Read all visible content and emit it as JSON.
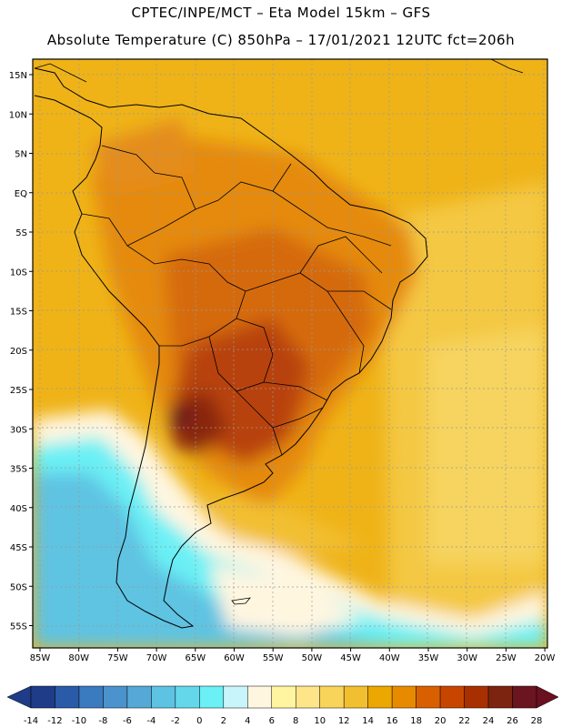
{
  "title": {
    "line1": "CPTEC/INPE/MCT –  Eta Model 15km – GFS",
    "line2": "Absolute Temperature (C) 850hPa – 17/01/2021 12UTC fct=206h"
  },
  "map": {
    "lat_ticks": [
      "15N",
      "10N",
      "5N",
      "EQ",
      "5S",
      "10S",
      "15S",
      "20S",
      "25S",
      "30S",
      "35S",
      "40S",
      "45S",
      "50S",
      "55S"
    ],
    "lon_ticks": [
      "85W",
      "80W",
      "75W",
      "70W",
      "65W",
      "60W",
      "55W",
      "50W",
      "45W",
      "40W",
      "35W",
      "30W",
      "25W",
      "20W"
    ]
  },
  "colorbar": {
    "labels": [
      "-14",
      "-12",
      "-10",
      "-8",
      "-6",
      "-4",
      "-2",
      "0",
      "2",
      "4",
      "6",
      "8",
      "10",
      "12",
      "14",
      "16",
      "18",
      "20",
      "22",
      "24",
      "26",
      "28"
    ],
    "colors": [
      "#1f3c88",
      "#2a5ba8",
      "#3a7bbf",
      "#4a93cc",
      "#56a9d6",
      "#5ec3e2",
      "#64d8ea",
      "#6af0f5",
      "#c8f4fb",
      "#fff6e0",
      "#fff5a0",
      "#ffe58a",
      "#f9d45a",
      "#f2bf30",
      "#eca700",
      "#e88a00",
      "#d96000",
      "#c84500",
      "#a83000",
      "#7d2410",
      "#6a1520"
    ]
  }
}
